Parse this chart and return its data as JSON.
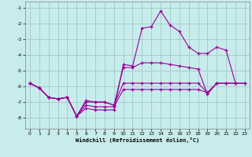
{
  "xlabel": "Windchill (Refroidissement éolien,°C)",
  "bg_color": "#c8ecec",
  "grid_color": "#a0c8c8",
  "line_color": "#990099",
  "xlim": [
    -0.5,
    23.5
  ],
  "ylim": [
    -8.7,
    -0.6
  ],
  "yticks": [
    -8,
    -7,
    -6,
    -5,
    -4,
    -3,
    -2,
    -1
  ],
  "xticks": [
    0,
    1,
    2,
    3,
    4,
    5,
    6,
    7,
    8,
    9,
    10,
    11,
    12,
    13,
    14,
    15,
    16,
    17,
    18,
    19,
    20,
    21,
    22,
    23
  ],
  "s1_x": [
    0,
    1,
    2,
    3,
    4,
    5,
    6,
    7,
    8,
    9,
    10,
    11,
    12,
    13,
    14,
    15,
    16,
    17,
    18,
    19,
    20,
    21,
    22
  ],
  "s1_y": [
    -5.8,
    -6.1,
    -6.7,
    -6.8,
    -6.7,
    -7.9,
    -7.4,
    -7.5,
    -7.5,
    -7.5,
    -4.6,
    -4.7,
    -2.3,
    -2.2,
    -1.2,
    -2.1,
    -2.5,
    -3.5,
    -3.9,
    -3.9,
    -3.5,
    -3.7,
    -5.8
  ],
  "s2_x": [
    0,
    1,
    2,
    3,
    4,
    5,
    6,
    7,
    8,
    9,
    10,
    11,
    12,
    13,
    14,
    15,
    16,
    17,
    18,
    19,
    20
  ],
  "s2_y": [
    -5.8,
    -6.1,
    -6.7,
    -6.8,
    -6.7,
    -7.9,
    -6.9,
    -7.0,
    -7.0,
    -7.2,
    -4.8,
    -4.8,
    -4.5,
    -4.5,
    -4.5,
    -4.6,
    -4.7,
    -4.8,
    -4.9,
    -6.5,
    -5.8
  ],
  "s3_x": [
    0,
    1,
    2,
    3,
    4,
    5,
    6,
    7,
    8,
    9,
    10,
    11,
    12,
    13,
    14,
    15,
    16,
    17,
    18,
    19,
    20,
    21,
    22,
    23
  ],
  "s3_y": [
    -5.8,
    -6.1,
    -6.7,
    -6.8,
    -6.7,
    -7.9,
    -7.0,
    -7.0,
    -7.0,
    -7.2,
    -5.8,
    -5.8,
    -5.8,
    -5.8,
    -5.8,
    -5.8,
    -5.8,
    -5.8,
    -5.8,
    -6.4,
    -5.8,
    -5.8,
    -5.8,
    -5.8
  ],
  "s4_x": [
    0,
    1,
    2,
    3,
    4,
    5,
    6,
    7,
    8,
    9,
    10,
    11,
    12,
    13,
    14,
    15,
    16,
    17,
    18,
    19,
    20,
    21,
    22,
    23
  ],
  "s4_y": [
    -5.8,
    -6.1,
    -6.7,
    -6.8,
    -6.7,
    -7.9,
    -7.2,
    -7.3,
    -7.3,
    -7.3,
    -6.2,
    -6.2,
    -6.2,
    -6.2,
    -6.2,
    -6.2,
    -6.2,
    -6.2,
    -6.2,
    -6.4,
    -5.8,
    -5.8,
    -5.8,
    -5.8
  ]
}
